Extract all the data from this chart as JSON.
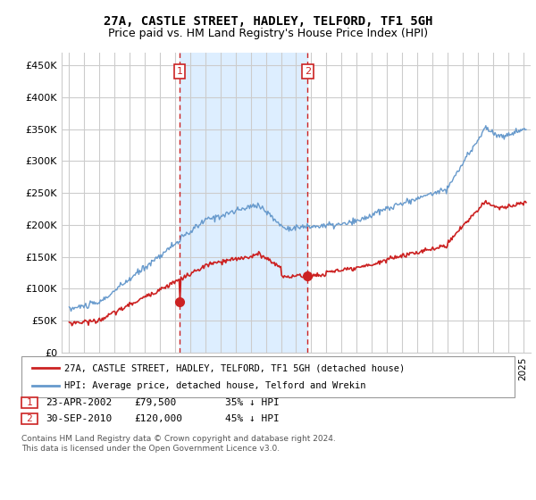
{
  "title": "27A, CASTLE STREET, HADLEY, TELFORD, TF1 5GH",
  "subtitle": "Price paid vs. HM Land Registry's House Price Index (HPI)",
  "ylabel_ticks": [
    "£0",
    "£50K",
    "£100K",
    "£150K",
    "£200K",
    "£250K",
    "£300K",
    "£350K",
    "£400K",
    "£450K"
  ],
  "ytick_values": [
    0,
    50000,
    100000,
    150000,
    200000,
    250000,
    300000,
    350000,
    400000,
    450000
  ],
  "ylim": [
    0,
    470000
  ],
  "xlim_start": 1994.5,
  "xlim_end": 2025.5,
  "background_color": "#ffffff",
  "plot_bg_color": "#ffffff",
  "shaded_color": "#ddeeff",
  "grid_color": "#cccccc",
  "hpi_color": "#6699cc",
  "price_color": "#cc2222",
  "dashed_line_color": "#cc2222",
  "transaction1_x": 2002.3,
  "transaction1_y": 79500,
  "transaction2_x": 2010.75,
  "transaction2_y": 120000,
  "legend_label1": "27A, CASTLE STREET, HADLEY, TELFORD, TF1 5GH (detached house)",
  "legend_label2": "HPI: Average price, detached house, Telford and Wrekin",
  "table_row1": [
    "1",
    "23-APR-2002",
    "£79,500",
    "35% ↓ HPI"
  ],
  "table_row2": [
    "2",
    "30-SEP-2010",
    "£120,000",
    "45% ↓ HPI"
  ],
  "footer": "Contains HM Land Registry data © Crown copyright and database right 2024.\nThis data is licensed under the Open Government Licence v3.0.",
  "title_fontsize": 10,
  "subtitle_fontsize": 9
}
